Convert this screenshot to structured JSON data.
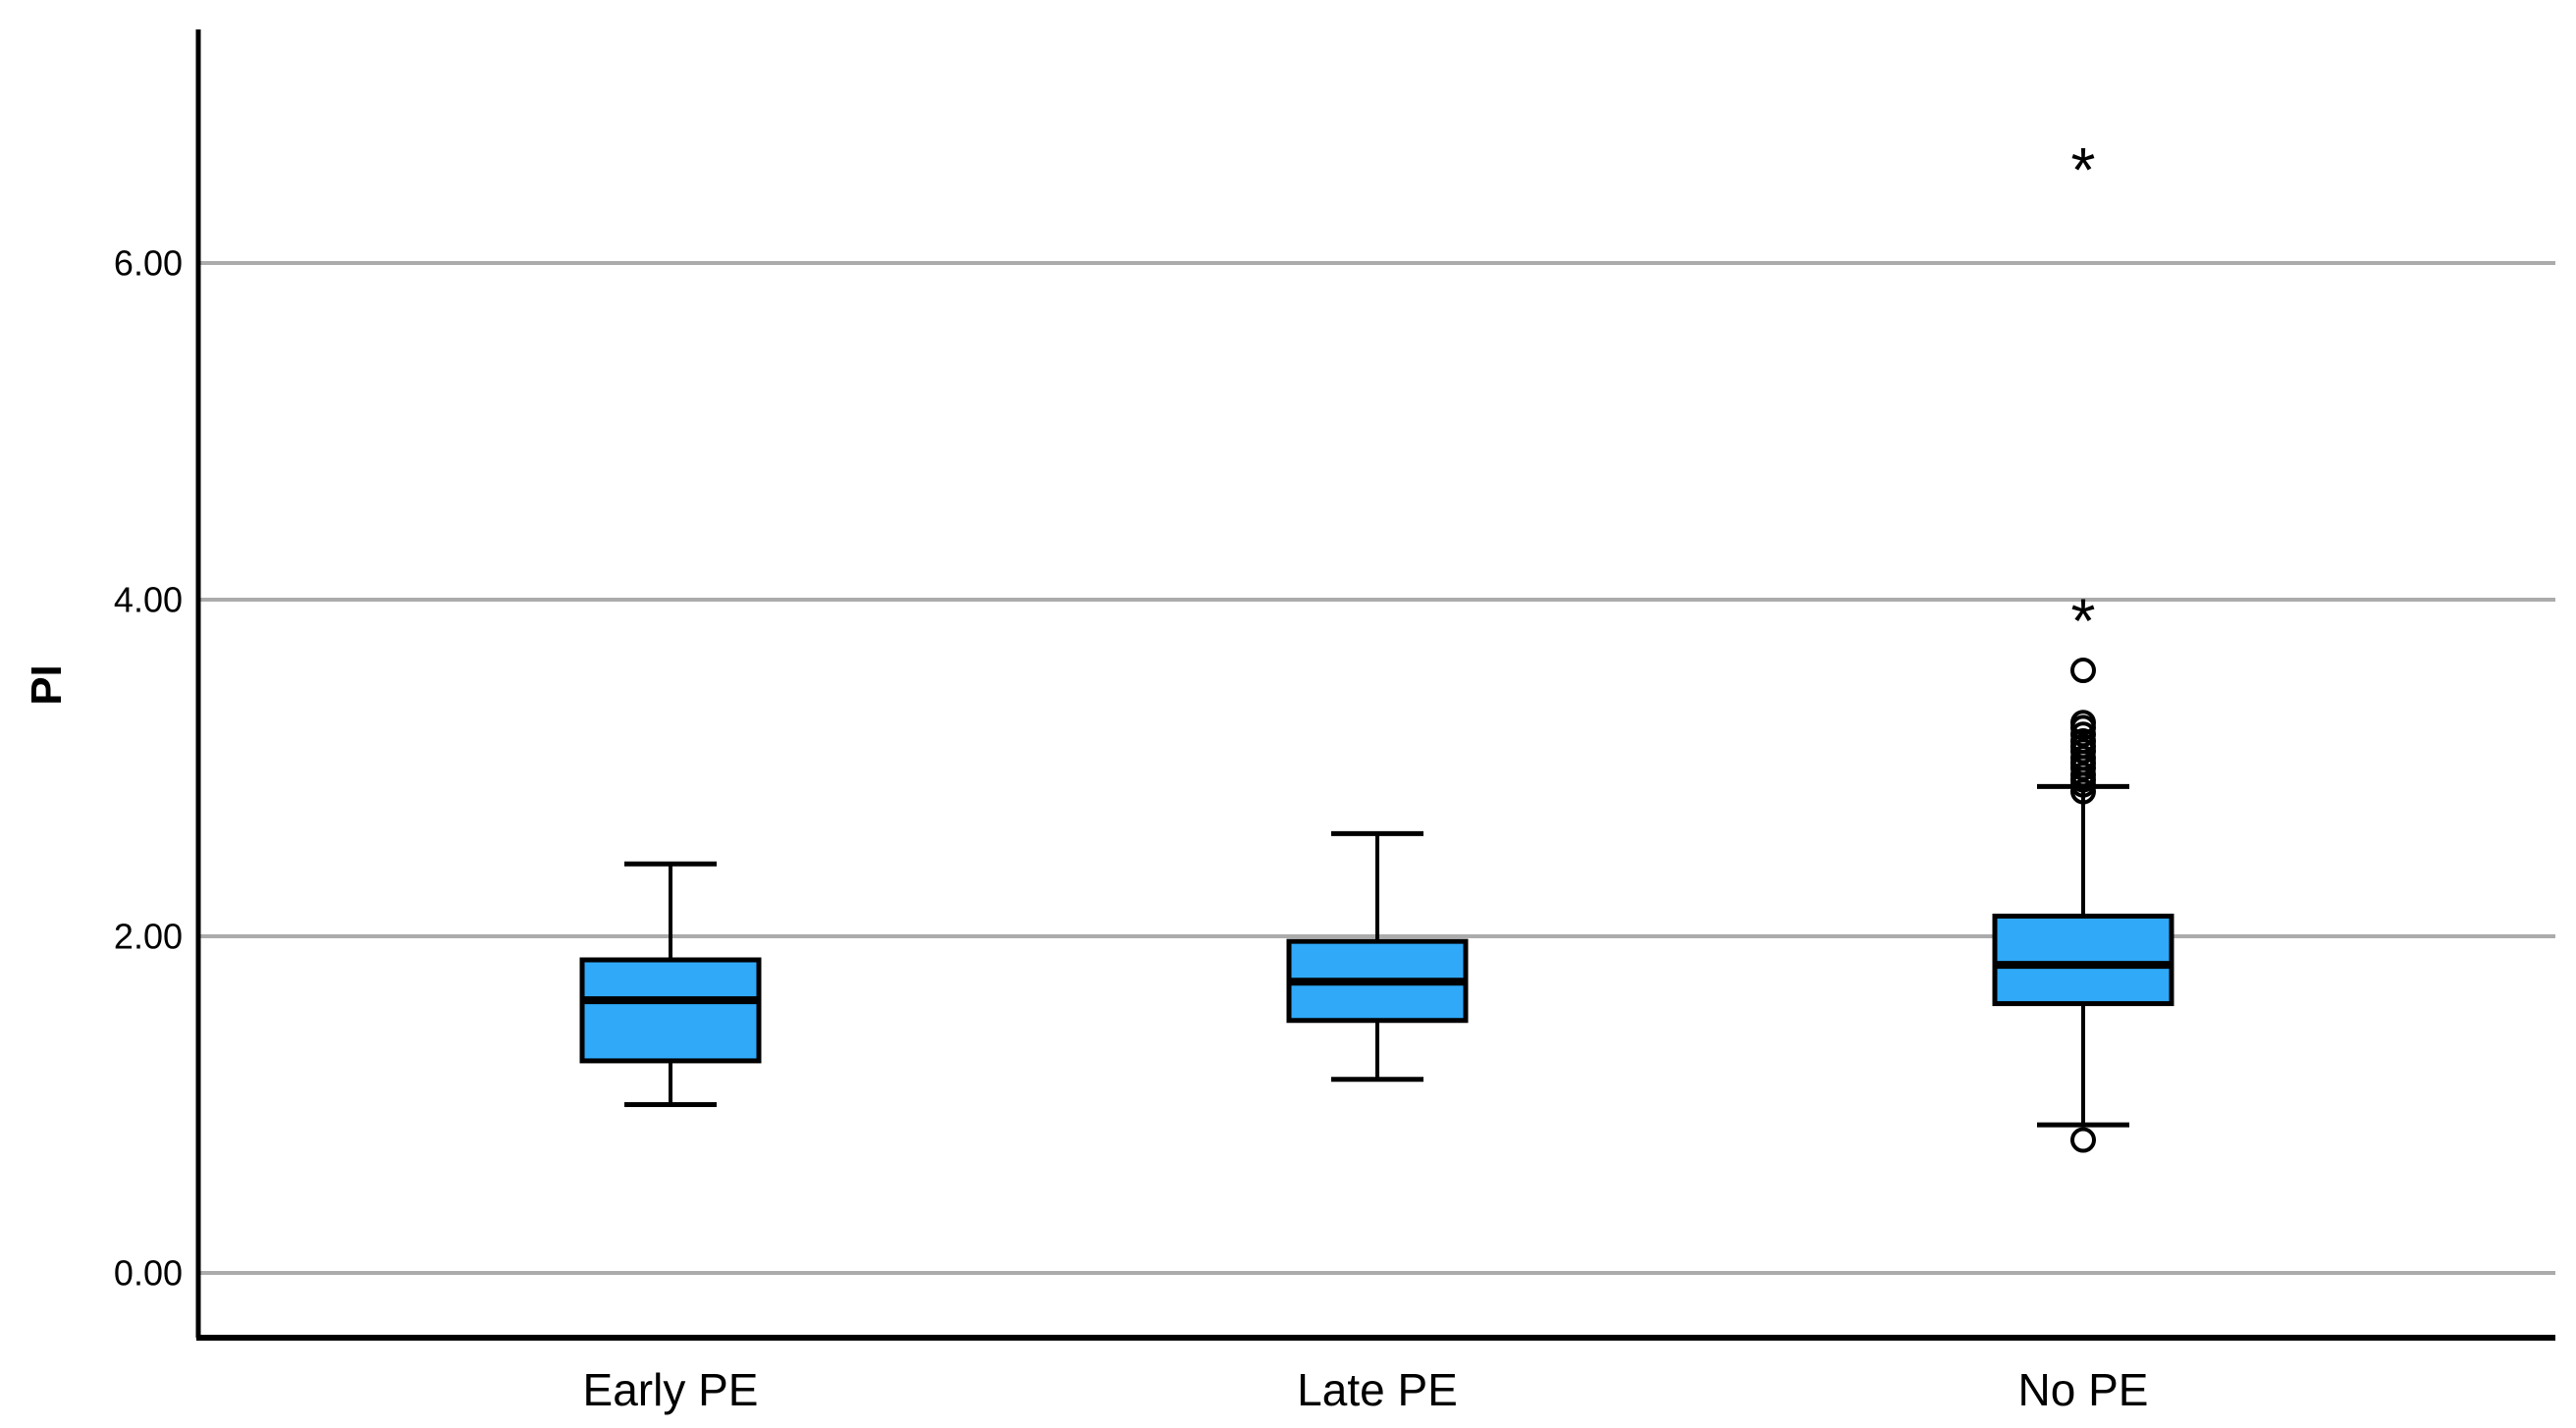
{
  "chart_data": {
    "type": "boxplot",
    "title": "",
    "ylabel": "PI",
    "xlabel": "",
    "categories": [
      "Early PE",
      "Late PE",
      "No PE"
    ],
    "yticks": [
      0.0,
      2.0,
      4.0,
      6.0
    ],
    "ytick_labels": [
      "0.00",
      "2.00",
      "4.00",
      "6.00"
    ],
    "ylim": [
      -0.38,
      7.4
    ],
    "grid": "horizontal-gridlines-at-yticks",
    "legend": "none",
    "series": [
      {
        "category": "Early PE",
        "whisker_low": 1.0,
        "q1": 1.26,
        "median": 1.62,
        "q3": 1.86,
        "whisker_high": 2.43,
        "outliers": []
      },
      {
        "category": "Late PE",
        "whisker_low": 1.15,
        "q1": 1.5,
        "median": 1.73,
        "q3": 1.97,
        "whisker_high": 2.61,
        "outliers": []
      },
      {
        "category": "No PE",
        "whisker_low": 0.88,
        "q1": 1.6,
        "median": 1.83,
        "q3": 2.12,
        "whisker_high": 2.89,
        "outliers": [
          {
            "value": 0.79,
            "marker": "circle"
          },
          {
            "value": 2.86,
            "marker": "circle"
          },
          {
            "value": 2.9,
            "marker": "circle"
          },
          {
            "value": 2.93,
            "marker": "circle"
          },
          {
            "value": 2.96,
            "marker": "circle"
          },
          {
            "value": 3.0,
            "marker": "circle"
          },
          {
            "value": 3.03,
            "marker": "circle"
          },
          {
            "value": 3.06,
            "marker": "circle"
          },
          {
            "value": 3.1,
            "marker": "circle"
          },
          {
            "value": 3.13,
            "marker": "circle"
          },
          {
            "value": 3.16,
            "marker": "circle"
          },
          {
            "value": 3.2,
            "marker": "circle"
          },
          {
            "value": 3.24,
            "marker": "circle"
          },
          {
            "value": 3.27,
            "marker": "circle"
          },
          {
            "value": 3.58,
            "marker": "circle"
          },
          {
            "value": 3.91,
            "marker": "asterisk"
          },
          {
            "value": 6.59,
            "marker": "asterisk"
          }
        ]
      }
    ],
    "colors": {
      "box_fill": "#2FA9F8",
      "box_border": "#000000",
      "median_line": "#000000",
      "whisker": "#000000",
      "outlier": "#000000",
      "gridline": "#ABABAB",
      "axis": "#000000",
      "background": "#FFFFFF",
      "tick_label": "#000000"
    }
  }
}
